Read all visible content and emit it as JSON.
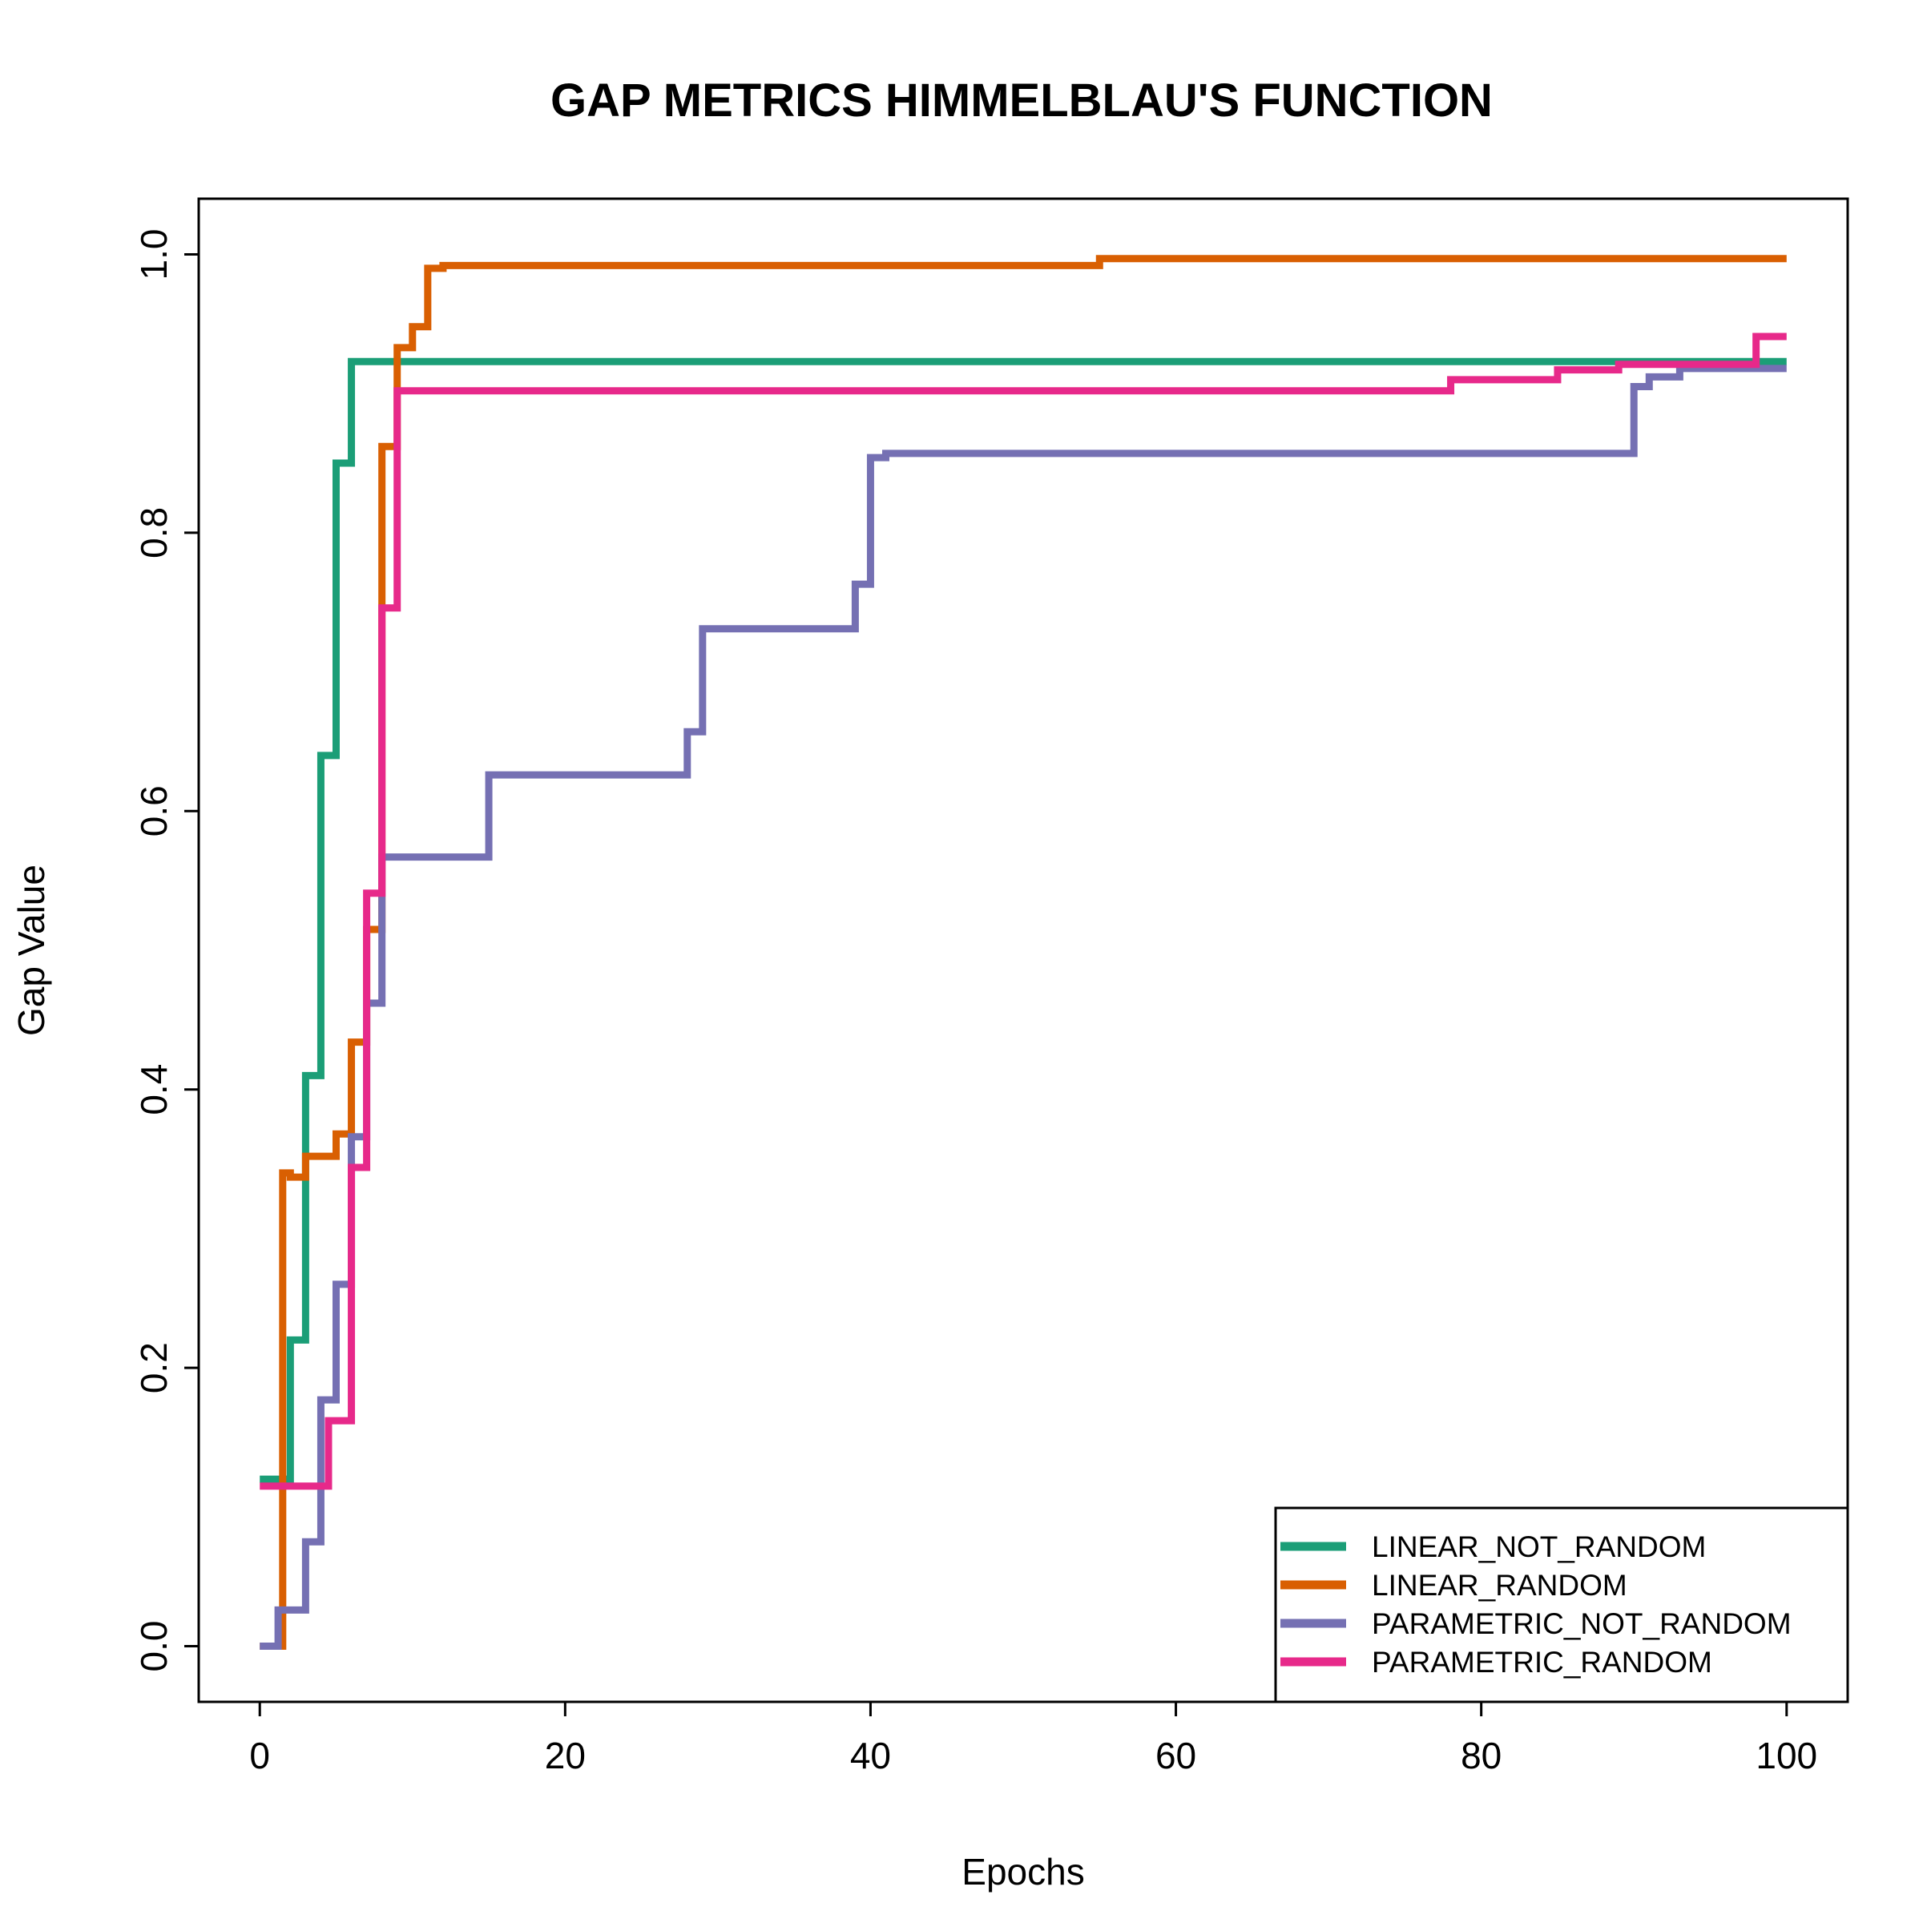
{
  "chart_data": {
    "type": "line",
    "title": "GAP METRICS HIMMELBLAU'S FUNCTION",
    "xlabel": "Epochs",
    "ylabel": "Gap Value",
    "xlim": [
      -4,
      104
    ],
    "ylim": [
      -0.04,
      1.04
    ],
    "xticks": [
      0,
      20,
      40,
      60,
      80,
      100
    ],
    "yticks": [
      0.0,
      0.2,
      0.4,
      0.6,
      0.8,
      1.0
    ],
    "xtick_labels": [
      "0",
      "20",
      "40",
      "60",
      "80",
      "100"
    ],
    "ytick_labels": [
      "0.0",
      "0.2",
      "0.4",
      "0.6",
      "0.8",
      "1.0"
    ],
    "step": true,
    "grid": false,
    "legend_position": "bottom-right",
    "series": [
      {
        "name": "LINEAR_NOT_RANDOM",
        "color": "#1B9E77",
        "points": [
          [
            0,
            0.12
          ],
          [
            1,
            0.12
          ],
          [
            2,
            0.22
          ],
          [
            3,
            0.41
          ],
          [
            4,
            0.64
          ],
          [
            5,
            0.85
          ],
          [
            6,
            0.923
          ],
          [
            100,
            0.923
          ]
        ]
      },
      {
        "name": "LINEAR_RANDOM",
        "color": "#D95F02",
        "points": [
          [
            0,
            0.0
          ],
          [
            1,
            0.0
          ],
          [
            1.5,
            0.34
          ],
          [
            2,
            0.337
          ],
          [
            3,
            0.352
          ],
          [
            4,
            0.352
          ],
          [
            5,
            0.368
          ],
          [
            6,
            0.434
          ],
          [
            7,
            0.515
          ],
          [
            8,
            0.862
          ],
          [
            9,
            0.933
          ],
          [
            10,
            0.948
          ],
          [
            11,
            0.99
          ],
          [
            12,
            0.992
          ],
          [
            54,
            0.992
          ],
          [
            55,
            0.997
          ],
          [
            100,
            0.997
          ]
        ]
      },
      {
        "name": "PARAMETRIC_NOT_RANDOM",
        "color": "#7570B3",
        "points": [
          [
            0,
            0.0
          ],
          [
            1,
            0.0
          ],
          [
            1.2,
            0.026
          ],
          [
            2,
            0.026
          ],
          [
            3,
            0.075
          ],
          [
            4,
            0.177
          ],
          [
            5,
            0.26
          ],
          [
            6,
            0.366
          ],
          [
            7,
            0.462
          ],
          [
            8,
            0.567
          ],
          [
            14,
            0.567
          ],
          [
            15,
            0.626
          ],
          [
            27,
            0.626
          ],
          [
            28,
            0.657
          ],
          [
            29,
            0.731
          ],
          [
            38,
            0.731
          ],
          [
            39,
            0.763
          ],
          [
            40,
            0.854
          ],
          [
            41,
            0.857
          ],
          [
            89,
            0.857
          ],
          [
            90,
            0.905
          ],
          [
            91,
            0.912
          ],
          [
            93,
            0.918
          ],
          [
            100,
            0.918
          ]
        ]
      },
      {
        "name": "PARAMETRIC_RANDOM",
        "color": "#E7298A",
        "points": [
          [
            0,
            0.115
          ],
          [
            4,
            0.115
          ],
          [
            4.5,
            0.162
          ],
          [
            5,
            0.162
          ],
          [
            6,
            0.344
          ],
          [
            7,
            0.541
          ],
          [
            8,
            0.746
          ],
          [
            9,
            0.902
          ],
          [
            77,
            0.902
          ],
          [
            78,
            0.91
          ],
          [
            84,
            0.91
          ],
          [
            85,
            0.917
          ],
          [
            88,
            0.917
          ],
          [
            89,
            0.921
          ],
          [
            97,
            0.921
          ],
          [
            98,
            0.941
          ],
          [
            100,
            0.941
          ]
        ]
      }
    ]
  }
}
